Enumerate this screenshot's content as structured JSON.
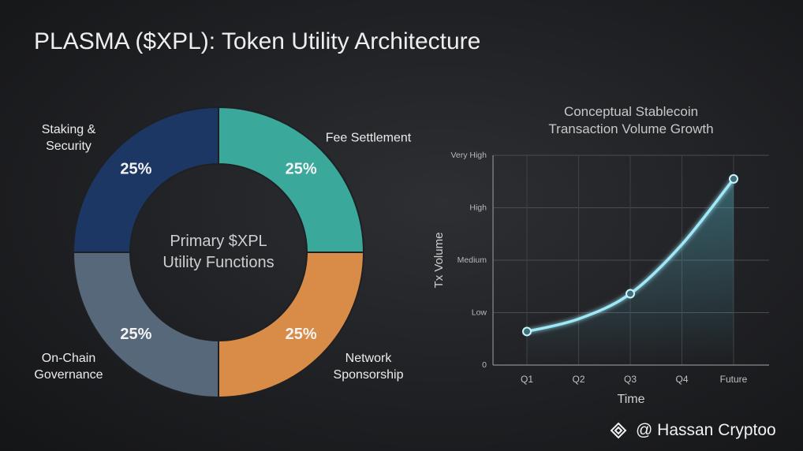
{
  "title": "PLASMA ($XPL): Token Utility Architecture",
  "watermark": "@ Hassan Cryptoo",
  "chart_data": [
    {
      "type": "pie",
      "center_label": "Primary $XPL Utility Functions",
      "categories": [
        "Fee Settlement",
        "Network Sponsorship",
        "On-Chain Governance",
        "Staking & Security"
      ],
      "values": [
        25,
        25,
        25,
        25
      ],
      "value_labels": [
        "25%",
        "25%",
        "25%",
        "25%"
      ],
      "colors": [
        "#3aa99b",
        "#d88c48",
        "#56687a",
        "#1c3764"
      ]
    },
    {
      "type": "line",
      "title": "Conceptual Stablecoin Transaction Volume Growth",
      "x_label": "Time",
      "y_label": "Tx Volume",
      "categories": [
        "Q1",
        "Q2",
        "Q3",
        "Q4",
        "Future"
      ],
      "values": [
        0.64,
        0.88,
        1.36,
        2.3,
        3.55
      ],
      "markers": [
        true,
        false,
        true,
        false,
        true
      ],
      "color": "#9fe8f7",
      "ylim": [
        0,
        4
      ],
      "yticks": [
        0,
        {
          "value": 1,
          "label": "Low"
        },
        {
          "value": 2,
          "label": "Medium"
        },
        {
          "value": 3,
          "label": "High"
        },
        {
          "value": 4,
          "label": "Very High"
        }
      ],
      "grid": true
    }
  ]
}
